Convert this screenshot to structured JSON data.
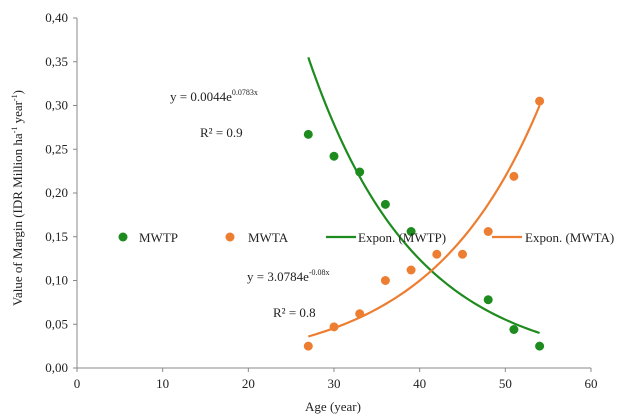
{
  "chart_data": {
    "type": "scatter",
    "xlabel": "Age (year)",
    "ylabel": {
      "pre": "Value of Margin (IDR Million ha",
      "sup1": "-1",
      "mid": " year",
      "sup2": "-1",
      "post": ")"
    },
    "xlim": [
      0,
      60
    ],
    "ylim": [
      0,
      0.4
    ],
    "x_ticks": [
      0,
      10,
      20,
      30,
      40,
      50,
      60
    ],
    "x_tick_labels": [
      "0",
      "10",
      "20",
      "30",
      "40",
      "50",
      "60"
    ],
    "y_ticks": [
      0,
      0.05,
      0.1,
      0.15,
      0.2,
      0.25,
      0.3,
      0.35,
      0.4
    ],
    "y_tick_labels": [
      "0,00",
      "0,05",
      "0,10",
      "0,15",
      "0,20",
      "0,25",
      "0,30",
      "0,35",
      "0,40"
    ],
    "grid": false,
    "legend_position": "middle",
    "series": [
      {
        "name": "MWTP",
        "color": "#1e8b1e",
        "x": [
          27,
          30,
          33,
          36,
          39,
          48,
          51,
          54
        ],
        "y": [
          0.267,
          0.242,
          0.224,
          0.187,
          0.156,
          0.078,
          0.044,
          0.025
        ]
      },
      {
        "name": "MWTA",
        "color": "#ed7d31",
        "x": [
          27,
          30,
          33,
          36,
          39,
          42,
          45,
          48,
          51,
          54
        ],
        "y": [
          0.025,
          0.047,
          0.062,
          0.1,
          0.112,
          0.13,
          0.13,
          0.156,
          0.219,
          0.305
        ]
      }
    ],
    "trendlines": [
      {
        "name": "Expon. (MWTP)",
        "color": "#1e8b1e",
        "type": "exponential",
        "x_range": [
          27,
          54
        ],
        "y_start": 0.355,
        "y_end": 0.04
      },
      {
        "name": "Expon. (MWTA)",
        "color": "#ed7d31",
        "type": "exponential",
        "x_range": [
          27,
          54
        ],
        "y_start": 0.036,
        "y_end": 0.3
      }
    ],
    "annotations": [
      {
        "id": "eq1",
        "base": "y = 0.0044e",
        "exp": "0.0783x"
      },
      {
        "id": "r2a",
        "text": "R² = 0.9"
      },
      {
        "id": "eq2",
        "base": "y = 3.0784e",
        "exp": "-0.08x"
      },
      {
        "id": "r2b",
        "text": "R² = 0.8"
      }
    ]
  }
}
